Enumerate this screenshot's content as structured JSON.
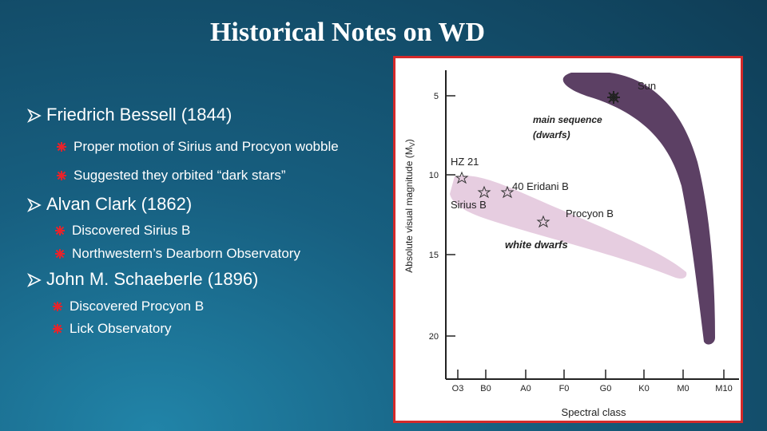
{
  "title": "Historical Notes on WD",
  "bullets": [
    {
      "text": "Friedrich Bessell (1844)",
      "items": [
        "Proper motion of Sirius and Procyon wobble",
        "Suggested they orbited “dark stars”"
      ]
    },
    {
      "text": "Alvan Clark (1862)",
      "items": [
        "Discovered Sirius B",
        "Northwestern’s Dearborn Observatory"
      ]
    },
    {
      "text": "John M. Schaeberle (1896)",
      "items": [
        "Discovered Procyon B",
        "Lick Observatory"
      ]
    }
  ],
  "figure": {
    "y_label": {
      "prefix": "Absolute visual magnitude (M",
      "subscript": "V",
      "suffix": ")"
    },
    "y_ticks": [
      5,
      10,
      15,
      20
    ],
    "x_label": "Spectral class",
    "x_ticks": [
      "O3",
      "B0",
      "A0",
      "F0",
      "G0",
      "K0",
      "M0",
      "M10"
    ],
    "labels": {
      "sun": "Sun",
      "main_sequence": "main sequence",
      "dwarfs": "(dwarfs)",
      "hz21": "HZ 21",
      "eridani": "40 Eridani B",
      "sirius": "Sirius B",
      "procyon": "Procyon B",
      "white_dwarfs": "white dwarfs"
    }
  }
}
